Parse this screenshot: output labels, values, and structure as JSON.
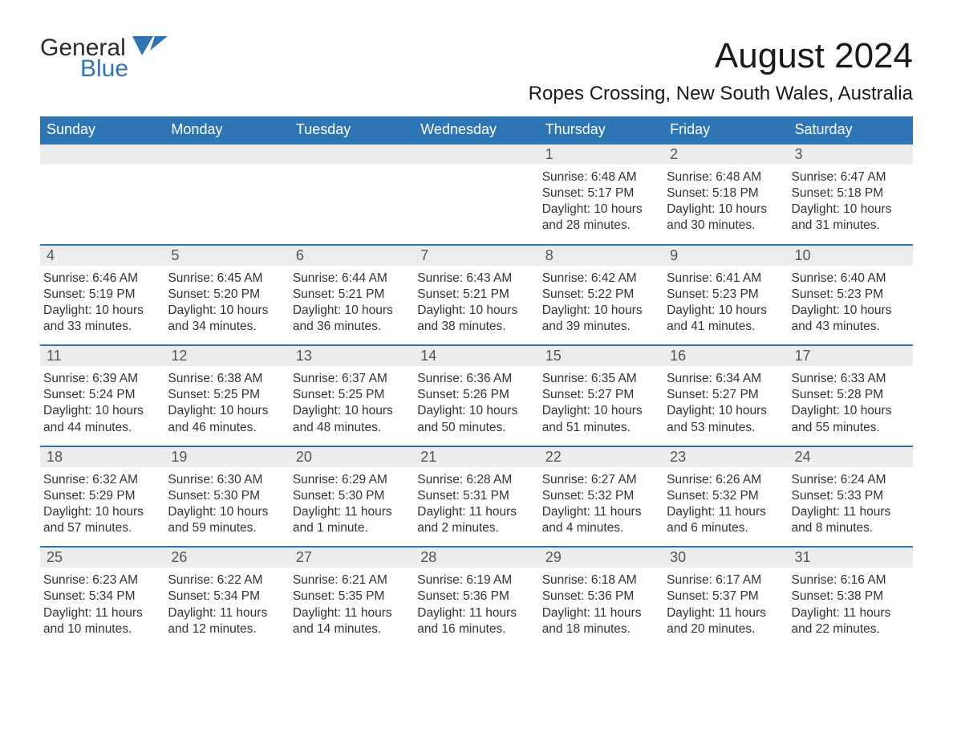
{
  "logo": {
    "main": "General",
    "sub": "Blue"
  },
  "title": "August 2024",
  "location": "Ropes Crossing, New South Wales, Australia",
  "colors": {
    "header_bg": "#2e75b6",
    "header_text": "#ffffff",
    "daynum_bg": "#ececec",
    "daynum_text": "#555555",
    "week_border": "#2e75b6",
    "body_text": "#333333",
    "logo_sub": "#2e75b6"
  },
  "weekdays": [
    "Sunday",
    "Monday",
    "Tuesday",
    "Wednesday",
    "Thursday",
    "Friday",
    "Saturday"
  ],
  "weeks": [
    [
      {
        "n": "",
        "sunrise": "",
        "sunset": "",
        "daylight": ""
      },
      {
        "n": "",
        "sunrise": "",
        "sunset": "",
        "daylight": ""
      },
      {
        "n": "",
        "sunrise": "",
        "sunset": "",
        "daylight": ""
      },
      {
        "n": "",
        "sunrise": "",
        "sunset": "",
        "daylight": ""
      },
      {
        "n": "1",
        "sunrise": "Sunrise: 6:48 AM",
        "sunset": "Sunset: 5:17 PM",
        "daylight": "Daylight: 10 hours and 28 minutes."
      },
      {
        "n": "2",
        "sunrise": "Sunrise: 6:48 AM",
        "sunset": "Sunset: 5:18 PM",
        "daylight": "Daylight: 10 hours and 30 minutes."
      },
      {
        "n": "3",
        "sunrise": "Sunrise: 6:47 AM",
        "sunset": "Sunset: 5:18 PM",
        "daylight": "Daylight: 10 hours and 31 minutes."
      }
    ],
    [
      {
        "n": "4",
        "sunrise": "Sunrise: 6:46 AM",
        "sunset": "Sunset: 5:19 PM",
        "daylight": "Daylight: 10 hours and 33 minutes."
      },
      {
        "n": "5",
        "sunrise": "Sunrise: 6:45 AM",
        "sunset": "Sunset: 5:20 PM",
        "daylight": "Daylight: 10 hours and 34 minutes."
      },
      {
        "n": "6",
        "sunrise": "Sunrise: 6:44 AM",
        "sunset": "Sunset: 5:21 PM",
        "daylight": "Daylight: 10 hours and 36 minutes."
      },
      {
        "n": "7",
        "sunrise": "Sunrise: 6:43 AM",
        "sunset": "Sunset: 5:21 PM",
        "daylight": "Daylight: 10 hours and 38 minutes."
      },
      {
        "n": "8",
        "sunrise": "Sunrise: 6:42 AM",
        "sunset": "Sunset: 5:22 PM",
        "daylight": "Daylight: 10 hours and 39 minutes."
      },
      {
        "n": "9",
        "sunrise": "Sunrise: 6:41 AM",
        "sunset": "Sunset: 5:23 PM",
        "daylight": "Daylight: 10 hours and 41 minutes."
      },
      {
        "n": "10",
        "sunrise": "Sunrise: 6:40 AM",
        "sunset": "Sunset: 5:23 PM",
        "daylight": "Daylight: 10 hours and 43 minutes."
      }
    ],
    [
      {
        "n": "11",
        "sunrise": "Sunrise: 6:39 AM",
        "sunset": "Sunset: 5:24 PM",
        "daylight": "Daylight: 10 hours and 44 minutes."
      },
      {
        "n": "12",
        "sunrise": "Sunrise: 6:38 AM",
        "sunset": "Sunset: 5:25 PM",
        "daylight": "Daylight: 10 hours and 46 minutes."
      },
      {
        "n": "13",
        "sunrise": "Sunrise: 6:37 AM",
        "sunset": "Sunset: 5:25 PM",
        "daylight": "Daylight: 10 hours and 48 minutes."
      },
      {
        "n": "14",
        "sunrise": "Sunrise: 6:36 AM",
        "sunset": "Sunset: 5:26 PM",
        "daylight": "Daylight: 10 hours and 50 minutes."
      },
      {
        "n": "15",
        "sunrise": "Sunrise: 6:35 AM",
        "sunset": "Sunset: 5:27 PM",
        "daylight": "Daylight: 10 hours and 51 minutes."
      },
      {
        "n": "16",
        "sunrise": "Sunrise: 6:34 AM",
        "sunset": "Sunset: 5:27 PM",
        "daylight": "Daylight: 10 hours and 53 minutes."
      },
      {
        "n": "17",
        "sunrise": "Sunrise: 6:33 AM",
        "sunset": "Sunset: 5:28 PM",
        "daylight": "Daylight: 10 hours and 55 minutes."
      }
    ],
    [
      {
        "n": "18",
        "sunrise": "Sunrise: 6:32 AM",
        "sunset": "Sunset: 5:29 PM",
        "daylight": "Daylight: 10 hours and 57 minutes."
      },
      {
        "n": "19",
        "sunrise": "Sunrise: 6:30 AM",
        "sunset": "Sunset: 5:30 PM",
        "daylight": "Daylight: 10 hours and 59 minutes."
      },
      {
        "n": "20",
        "sunrise": "Sunrise: 6:29 AM",
        "sunset": "Sunset: 5:30 PM",
        "daylight": "Daylight: 11 hours and 1 minute."
      },
      {
        "n": "21",
        "sunrise": "Sunrise: 6:28 AM",
        "sunset": "Sunset: 5:31 PM",
        "daylight": "Daylight: 11 hours and 2 minutes."
      },
      {
        "n": "22",
        "sunrise": "Sunrise: 6:27 AM",
        "sunset": "Sunset: 5:32 PM",
        "daylight": "Daylight: 11 hours and 4 minutes."
      },
      {
        "n": "23",
        "sunrise": "Sunrise: 6:26 AM",
        "sunset": "Sunset: 5:32 PM",
        "daylight": "Daylight: 11 hours and 6 minutes."
      },
      {
        "n": "24",
        "sunrise": "Sunrise: 6:24 AM",
        "sunset": "Sunset: 5:33 PM",
        "daylight": "Daylight: 11 hours and 8 minutes."
      }
    ],
    [
      {
        "n": "25",
        "sunrise": "Sunrise: 6:23 AM",
        "sunset": "Sunset: 5:34 PM",
        "daylight": "Daylight: 11 hours and 10 minutes."
      },
      {
        "n": "26",
        "sunrise": "Sunrise: 6:22 AM",
        "sunset": "Sunset: 5:34 PM",
        "daylight": "Daylight: 11 hours and 12 minutes."
      },
      {
        "n": "27",
        "sunrise": "Sunrise: 6:21 AM",
        "sunset": "Sunset: 5:35 PM",
        "daylight": "Daylight: 11 hours and 14 minutes."
      },
      {
        "n": "28",
        "sunrise": "Sunrise: 6:19 AM",
        "sunset": "Sunset: 5:36 PM",
        "daylight": "Daylight: 11 hours and 16 minutes."
      },
      {
        "n": "29",
        "sunrise": "Sunrise: 6:18 AM",
        "sunset": "Sunset: 5:36 PM",
        "daylight": "Daylight: 11 hours and 18 minutes."
      },
      {
        "n": "30",
        "sunrise": "Sunrise: 6:17 AM",
        "sunset": "Sunset: 5:37 PM",
        "daylight": "Daylight: 11 hours and 20 minutes."
      },
      {
        "n": "31",
        "sunrise": "Sunrise: 6:16 AM",
        "sunset": "Sunset: 5:38 PM",
        "daylight": "Daylight: 11 hours and 22 minutes."
      }
    ]
  ]
}
